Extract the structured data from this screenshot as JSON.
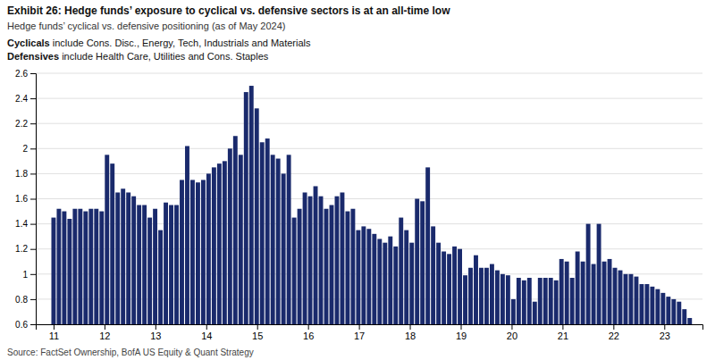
{
  "chart_data": {
    "type": "bar",
    "title": "Exhibit 26: Hedge funds’ exposure to cyclical vs. defensive sectors is at an all-time low",
    "subtitle": "Hedge funds’ cyclical vs. defensive positioning (as of May 2024)",
    "annotations": [
      {
        "label": "Cyclicals",
        "text": " include Cons. Disc., Energy, Tech, Industrials and Materials"
      },
      {
        "label": "Defensives",
        "text": " include Health Care, Utilities and Cons. Staples"
      }
    ],
    "source": "Source: FactSet Ownership, BofA US Equity & Quant Strategy",
    "x": [
      11.0,
      11.105,
      11.2101,
      11.3151,
      11.4202,
      11.5252,
      11.6303,
      11.7353,
      11.8403,
      11.9454,
      12.0504,
      12.1555,
      12.2605,
      12.3655,
      12.4706,
      12.5756,
      12.6807,
      12.7857,
      12.8908,
      12.9958,
      13.1008,
      13.2059,
      13.3109,
      13.416,
      13.521,
      13.6261,
      13.7311,
      13.8361,
      13.9412,
      14.0462,
      14.1513,
      14.2563,
      14.3613,
      14.4664,
      14.5714,
      14.6765,
      14.7815,
      14.8866,
      14.9916,
      15.0966,
      15.2017,
      15.3067,
      15.4118,
      15.5168,
      15.6218,
      15.7269,
      15.8319,
      15.937,
      16.042,
      16.1471,
      16.2521,
      16.3571,
      16.4622,
      16.5672,
      16.6723,
      16.7773,
      16.8824,
      16.9874,
      17.0924,
      17.1975,
      17.3025,
      17.4076,
      17.5126,
      17.6176,
      17.7227,
      17.8277,
      17.9328,
      18.0378,
      18.1429,
      18.2479,
      18.3529,
      18.458,
      18.563,
      18.6681,
      18.7731,
      18.8782,
      18.9832,
      19.0882,
      19.1933,
      19.2983,
      19.4034,
      19.5084,
      19.6134,
      19.7185,
      19.8235,
      19.9286,
      20.0336,
      20.1387,
      20.2437,
      20.3487,
      20.4538,
      20.5588,
      20.6639,
      20.7689,
      20.8739,
      20.979,
      21.084,
      21.1891,
      21.2941,
      21.3992,
      21.5042,
      21.6092,
      21.7143,
      21.8193,
      21.9244,
      22.0294,
      22.1345,
      22.2395,
      22.3445,
      22.4496,
      22.5546,
      22.6597,
      22.7647,
      22.8697,
      22.9748,
      23.0798,
      23.1849,
      23.2899,
      23.395,
      23.5
    ],
    "values": [
      1.45,
      1.52,
      1.5,
      1.44,
      1.52,
      1.52,
      1.5,
      1.52,
      1.52,
      1.5,
      1.95,
      1.88,
      1.65,
      1.68,
      1.65,
      1.62,
      1.55,
      1.55,
      1.45,
      1.52,
      1.35,
      1.57,
      1.55,
      1.55,
      1.75,
      2.02,
      1.75,
      1.73,
      1.75,
      1.8,
      1.85,
      1.88,
      1.9,
      2.0,
      2.1,
      1.95,
      2.45,
      2.5,
      2.32,
      2.05,
      2.08,
      1.95,
      1.92,
      1.8,
      1.95,
      1.45,
      1.52,
      1.65,
      1.62,
      1.7,
      1.62,
      1.52,
      1.55,
      1.62,
      1.65,
      1.5,
      1.52,
      1.35,
      1.38,
      1.36,
      1.32,
      1.28,
      1.25,
      1.3,
      1.22,
      1.45,
      1.35,
      1.25,
      1.6,
      1.58,
      1.85,
      1.38,
      1.25,
      1.18,
      1.16,
      1.22,
      1.2,
      0.99,
      1.05,
      1.15,
      1.05,
      1.05,
      1.08,
      1.03,
      1.0,
      0.99,
      0.8,
      0.97,
      0.95,
      0.97,
      0.78,
      0.97,
      0.97,
      0.97,
      0.95,
      1.12,
      1.1,
      0.97,
      1.18,
      1.1,
      1.4,
      1.08,
      1.4,
      1.1,
      1.12,
      1.05,
      1.03,
      1.0,
      1.0,
      0.98,
      0.92,
      0.92,
      0.9,
      0.88,
      0.85,
      0.82,
      0.8,
      0.78,
      0.72,
      0.65
    ],
    "color": "#1a2a6c",
    "xlim": [
      10.65,
      23.75
    ],
    "xticks": [
      11,
      12,
      13,
      14,
      15,
      16,
      17,
      18,
      19,
      20,
      21,
      22,
      23
    ],
    "ylim": [
      0.6,
      2.6
    ],
    "yticks": [
      0.6,
      0.8,
      1,
      1.2,
      1.4,
      1.6,
      1.8,
      2,
      2.2,
      2.4,
      2.6
    ],
    "grid": true
  }
}
